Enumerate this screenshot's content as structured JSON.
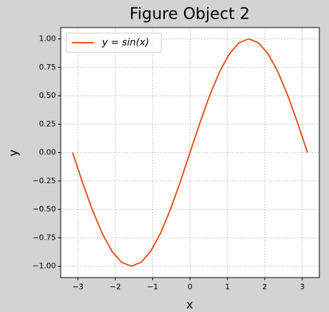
{
  "chart_data": {
    "type": "line",
    "title": "Figure Object 2",
    "x_label": "x",
    "y_label": "y",
    "x": [
      -3.1416,
      -2.8798,
      -2.618,
      -2.3562,
      -2.0944,
      -1.8326,
      -1.5708,
      -1.309,
      -1.0472,
      -0.7854,
      -0.5236,
      -0.2618,
      0,
      0.2618,
      0.5236,
      0.7854,
      1.0472,
      1.309,
      1.5708,
      1.8326,
      2.0944,
      2.3562,
      2.618,
      2.8798,
      3.1416
    ],
    "series": [
      {
        "name": "y = sin(x)",
        "color": "#e8501a",
        "values": [
          0,
          -0.2588,
          -0.5,
          -0.7071,
          -0.866,
          -0.9659,
          -1,
          -0.9659,
          -0.866,
          -0.7071,
          -0.5,
          -0.2588,
          0,
          0.2588,
          0.5,
          0.7071,
          0.866,
          0.9659,
          1,
          0.9659,
          0.866,
          0.7071,
          0.5,
          0.2588,
          0
        ]
      }
    ],
    "xlim": [
      -3.46,
      3.46
    ],
    "ylim": [
      -1.1,
      1.1
    ],
    "xticks": [
      {
        "value": -3,
        "label": "−3"
      },
      {
        "value": -2,
        "label": "−2"
      },
      {
        "value": -1,
        "label": "−1"
      },
      0,
      1,
      2,
      3
    ],
    "yticks": [
      {
        "value": -1,
        "label": "−1.00"
      },
      {
        "value": -0.75,
        "label": "−0.75"
      },
      {
        "value": -0.5,
        "label": "−0.50"
      },
      {
        "value": -0.25,
        "label": "−0.25"
      },
      {
        "value": 0,
        "label": "0.00"
      },
      {
        "value": 0.25,
        "label": "0.25"
      },
      {
        "value": 0.5,
        "label": "0.50"
      },
      {
        "value": 0.75,
        "label": "0.75"
      },
      {
        "value": 1,
        "label": "1.00"
      }
    ],
    "grid": true,
    "legend": "upper left"
  }
}
